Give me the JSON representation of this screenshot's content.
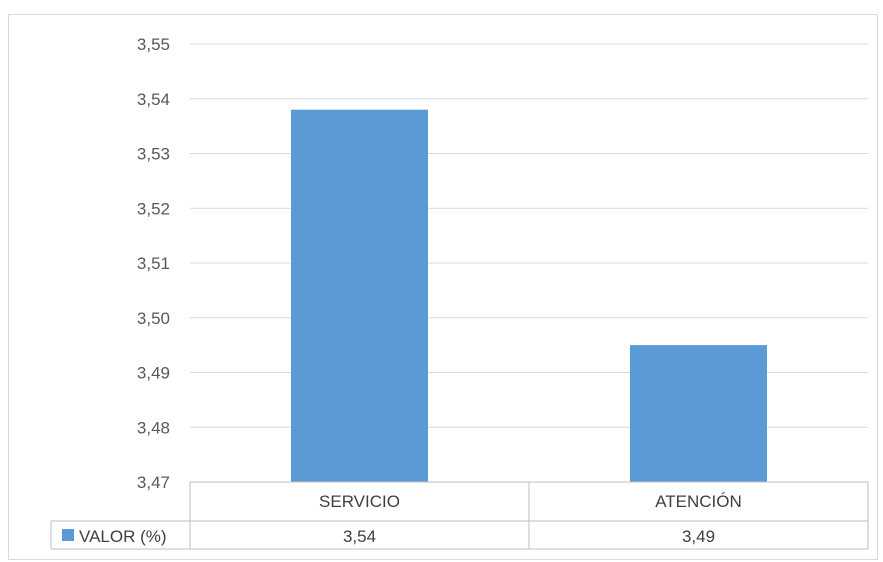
{
  "chart_data": {
    "type": "bar",
    "categories": [
      "SERVICIO",
      "ATENCIÓN"
    ],
    "series": [
      {
        "name": "VALOR (%)",
        "values": [
          3.538,
          3.495
        ],
        "labels": [
          "3,54",
          "3,49"
        ]
      }
    ],
    "y_ticks": [
      "3,47",
      "3,48",
      "3,49",
      "3,50",
      "3,51",
      "3,52",
      "3,53",
      "3,54",
      "3,55"
    ],
    "ylim": [
      3.47,
      3.55
    ],
    "grid": true,
    "legend": "data-table-left",
    "bar_color": "#5b9bd5",
    "grid_color": "#d9d9d9"
  }
}
